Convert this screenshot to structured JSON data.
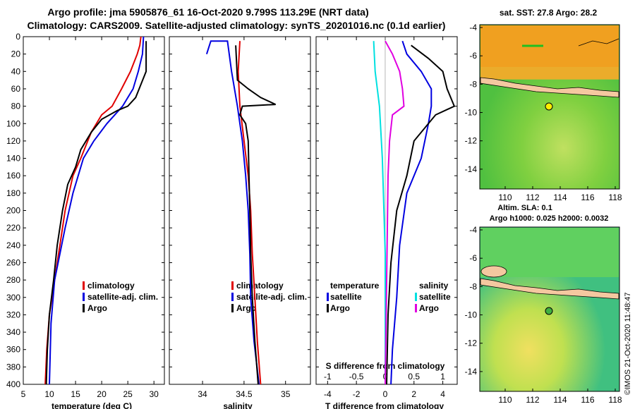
{
  "header": {
    "title_line1": "Argo profile: jma 5905876_61 16-Oct-2020 9.799S 113.29E (NRT data)",
    "title_line2": "Climatology: CARS2009. Satellite-adjusted climatology: synTS_20201016.nc (0.1d earlier)"
  },
  "colors": {
    "climatology": "#e00000",
    "satellite": "#0000e0",
    "argo": "#000000",
    "sal_satellite": "#00e0e0",
    "sal_argo": "#e000e0"
  },
  "depth_ticks": [
    "0",
    "20",
    "40",
    "60",
    "80",
    "100",
    "120",
    "140",
    "160",
    "180",
    "200",
    "220",
    "240",
    "260",
    "280",
    "300",
    "320",
    "340",
    "360",
    "380",
    "400"
  ],
  "chart_data": [
    {
      "type": "line",
      "name": "temperature",
      "xlabel": "temperature (deg C)",
      "xlim": [
        5,
        32
      ],
      "ylim": [
        0,
        400
      ],
      "xticks": [
        {
          "v": 5,
          "label": "5"
        },
        {
          "v": 10,
          "label": "10"
        },
        {
          "v": 15,
          "label": "15"
        },
        {
          "v": 20,
          "label": "20"
        },
        {
          "v": 25,
          "label": "25"
        },
        {
          "v": 30,
          "label": "30"
        }
      ],
      "legend": [
        "climatology",
        "satellite-adj. clim.",
        "Argo"
      ],
      "series": [
        {
          "name": "climatology",
          "color": "#e00000",
          "points": [
            [
              27.5,
              0
            ],
            [
              27.3,
              10
            ],
            [
              26.8,
              20
            ],
            [
              25.5,
              40
            ],
            [
              23.8,
              60
            ],
            [
              22,
              80
            ],
            [
              20,
              90
            ],
            [
              18,
              110
            ],
            [
              16,
              140
            ],
            [
              14.5,
              160
            ],
            [
              13,
              200
            ],
            [
              12,
              240
            ],
            [
              11,
              280
            ],
            [
              10,
              320
            ],
            [
              9.5,
              360
            ],
            [
              9.2,
              400
            ]
          ]
        },
        {
          "name": "satellite-adj. clim.",
          "color": "#0000e0",
          "points": [
            [
              28,
              0
            ],
            [
              27.8,
              20
            ],
            [
              27,
              40
            ],
            [
              26,
              60
            ],
            [
              24,
              80
            ],
            [
              21,
              100
            ],
            [
              18.5,
              120
            ],
            [
              16.5,
              140
            ],
            [
              14.5,
              180
            ],
            [
              13,
              220
            ],
            [
              12,
              250
            ],
            [
              11,
              280
            ],
            [
              10.3,
              330
            ],
            [
              10,
              400
            ]
          ]
        },
        {
          "name": "Argo",
          "color": "#000000",
          "points": [
            [
              28.5,
              5
            ],
            [
              28.5,
              40
            ],
            [
              27.5,
              55
            ],
            [
              26.5,
              70
            ],
            [
              25,
              80
            ],
            [
              23,
              85
            ],
            [
              20,
              95
            ],
            [
              18,
              110
            ],
            [
              16,
              130
            ],
            [
              15,
              150
            ],
            [
              13.5,
              170
            ],
            [
              12.5,
              200
            ],
            [
              11.5,
              240
            ],
            [
              10.8,
              280
            ],
            [
              10,
              320
            ],
            [
              9.6,
              360
            ],
            [
              9.4,
              400
            ]
          ]
        }
      ]
    },
    {
      "type": "line",
      "name": "salinity",
      "xlabel": "salinity",
      "xlim": [
        33.6,
        35.3
      ],
      "ylim": [
        0,
        400
      ],
      "xticks": [
        {
          "v": 34,
          "label": "34"
        },
        {
          "v": 34.5,
          "label": "34.5"
        },
        {
          "v": 35,
          "label": "35"
        }
      ],
      "legend": [
        "climatology",
        "satellite-adj. clim.",
        "Argo"
      ],
      "series": [
        {
          "name": "climatology",
          "color": "#e00000",
          "points": [
            [
              34.45,
              5
            ],
            [
              34.43,
              40
            ],
            [
              34.45,
              80
            ],
            [
              34.5,
              120
            ],
            [
              34.55,
              160
            ],
            [
              34.58,
              200
            ],
            [
              34.6,
              250
            ],
            [
              34.63,
              300
            ],
            [
              34.66,
              350
            ],
            [
              34.7,
              400
            ]
          ]
        },
        {
          "name": "satellite-adj. clim.",
          "color": "#0000e0",
          "points": [
            [
              34.05,
              20
            ],
            [
              34.1,
              5
            ],
            [
              34.3,
              5
            ],
            [
              34.35,
              40
            ],
            [
              34.42,
              80
            ],
            [
              34.48,
              120
            ],
            [
              34.52,
              160
            ],
            [
              34.55,
              200
            ],
            [
              34.57,
              250
            ],
            [
              34.58,
              300
            ],
            [
              34.62,
              350
            ],
            [
              34.68,
              400
            ]
          ]
        },
        {
          "name": "Argo",
          "color": "#000000",
          "points": [
            [
              34.4,
              10
            ],
            [
              34.42,
              50
            ],
            [
              34.55,
              60
            ],
            [
              34.7,
              70
            ],
            [
              34.88,
              78
            ],
            [
              34.48,
              80
            ],
            [
              34.45,
              90
            ],
            [
              34.52,
              100
            ],
            [
              34.55,
              120
            ],
            [
              34.56,
              160
            ],
            [
              34.57,
              200
            ],
            [
              34.58,
              250
            ],
            [
              34.6,
              300
            ],
            [
              34.63,
              350
            ],
            [
              34.67,
              400
            ]
          ]
        }
      ]
    },
    {
      "type": "line",
      "name": "difference",
      "xlabel": "T difference from climatology",
      "xlim": [
        -4.8,
        5
      ],
      "ylim": [
        0,
        400
      ],
      "xticks": [
        {
          "v": -4,
          "label": "-4"
        },
        {
          "v": -2,
          "label": "-2"
        },
        {
          "v": 0,
          "label": "0"
        },
        {
          "v": 2,
          "label": "2"
        },
        {
          "v": 4,
          "label": "4"
        }
      ],
      "top_axis": {
        "label": "S difference from climatology",
        "ticks": [
          {
            "v": -4,
            "label": "-1"
          },
          {
            "v": -2,
            "label": "-0.5"
          },
          {
            "v": 0,
            "label": "0"
          },
          {
            "v": 2,
            "label": "0.5"
          },
          {
            "v": 4,
            "label": "1"
          }
        ]
      },
      "legend_left": {
        "title": "temperature",
        "items": [
          "satellite",
          "Argo"
        ]
      },
      "legend_right": {
        "title": "salinity",
        "items": [
          "satellite",
          "Argo"
        ]
      },
      "series": [
        {
          "name": "T satellite",
          "color": "#0000e0",
          "points": [
            [
              1.2,
              5
            ],
            [
              1.5,
              20
            ],
            [
              2.5,
              40
            ],
            [
              3.2,
              60
            ],
            [
              3.2,
              80
            ],
            [
              3,
              100
            ],
            [
              2.5,
              140
            ],
            [
              1.5,
              180
            ],
            [
              1,
              240
            ],
            [
              0.8,
              300
            ],
            [
              0.5,
              360
            ],
            [
              0.4,
              400
            ]
          ]
        },
        {
          "name": "T Argo",
          "color": "#000000",
          "points": [
            [
              1.8,
              10
            ],
            [
              3,
              25
            ],
            [
              4,
              40
            ],
            [
              4.3,
              60
            ],
            [
              4.8,
              80
            ],
            [
              3.5,
              90
            ],
            [
              2,
              120
            ],
            [
              1.5,
              160
            ],
            [
              0.8,
              200
            ],
            [
              0.4,
              260
            ],
            [
              0.2,
              320
            ],
            [
              0.1,
              400
            ]
          ]
        },
        {
          "name": "S satellite",
          "color": "#00e0e0",
          "points": [
            [
              -0.8,
              5
            ],
            [
              -0.7,
              40
            ],
            [
              -0.4,
              80
            ],
            [
              -0.2,
              140
            ],
            [
              0,
              250
            ],
            [
              0,
              400
            ]
          ]
        },
        {
          "name": "S Argo",
          "color": "#e000e0",
          "points": [
            [
              0,
              5
            ],
            [
              0.5,
              20
            ],
            [
              1,
              40
            ],
            [
              1.2,
              60
            ],
            [
              1.3,
              80
            ],
            [
              0.5,
              90
            ],
            [
              0.3,
              120
            ],
            [
              0.2,
              160
            ],
            [
              0,
              400
            ]
          ]
        }
      ]
    }
  ],
  "maps": {
    "sst": {
      "title": "sat. SST: 27.8 Argo: 28.2",
      "yticks": [
        "-4",
        "-6",
        "-8",
        "-10",
        "-12",
        "-14"
      ],
      "xticks": [
        "110",
        "112",
        "114",
        "116",
        "118"
      ]
    },
    "sla": {
      "title_line1": "Altim. SLA: 0.1",
      "title_line2": "Argo h1000: 0.025 h2000: 0.0032",
      "yticks": [
        "-4",
        "-6",
        "-8",
        "-10",
        "-12",
        "-14"
      ],
      "xticks": [
        "110",
        "112",
        "114",
        "116",
        "118"
      ]
    },
    "footer_vertical": "©IMOS 21-Oct-2020 11:48:47"
  }
}
